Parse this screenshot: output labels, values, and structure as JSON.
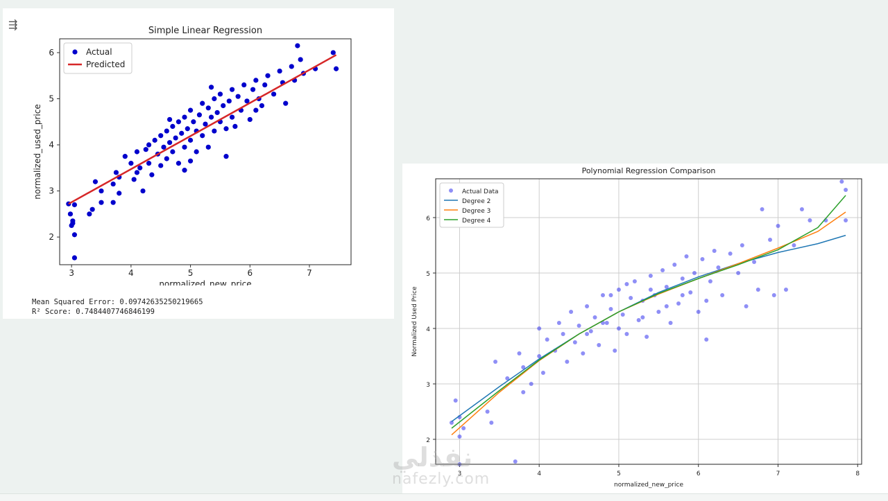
{
  "toolbar": {
    "menu_icon": "collapse-output-icon"
  },
  "metrics": {
    "mse": "Mean Squared Error: 0.09742635250219665",
    "r2": "R² Score: 0.7484407746846199"
  },
  "watermark": {
    "arabic": "نفذلي",
    "latin": "nafezly.com"
  },
  "chart_data": [
    {
      "type": "scatter",
      "title": "Simple Linear Regression",
      "xlabel": "normalized_new_price",
      "ylabel": "normalized_used_price",
      "xlim": [
        2.8,
        7.7
      ],
      "ylim": [
        1.4,
        6.3
      ],
      "xticks": [
        3,
        4,
        5,
        6,
        7
      ],
      "yticks": [
        2,
        3,
        4,
        5,
        6
      ],
      "grid": false,
      "legend_position": "top-left",
      "colors": {
        "actual": "#0000cc",
        "predicted": "#d62728"
      },
      "series": [
        {
          "name": "Actual",
          "kind": "scatter",
          "color": "#0000cc",
          "points": [
            [
              2.95,
              2.72
            ],
            [
              2.98,
              2.5
            ],
            [
              3.0,
              2.25
            ],
            [
              3.02,
              2.3
            ],
            [
              3.05,
              2.05
            ],
            [
              3.05,
              1.55
            ],
            [
              3.02,
              2.35
            ],
            [
              3.05,
              2.7
            ],
            [
              3.3,
              2.5
            ],
            [
              3.35,
              2.6
            ],
            [
              3.4,
              3.2
            ],
            [
              3.5,
              3.0
            ],
            [
              3.5,
              2.75
            ],
            [
              3.7,
              3.15
            ],
            [
              3.75,
              3.4
            ],
            [
              3.8,
              2.95
            ],
            [
              3.8,
              3.3
            ],
            [
              3.9,
              3.75
            ],
            [
              4.0,
              3.6
            ],
            [
              4.05,
              3.25
            ],
            [
              4.1,
              3.85
            ],
            [
              4.15,
              3.5
            ],
            [
              4.2,
              3.0
            ],
            [
              4.25,
              3.9
            ],
            [
              4.3,
              4.0
            ],
            [
              4.3,
              3.6
            ],
            [
              4.35,
              3.35
            ],
            [
              4.4,
              4.1
            ],
            [
              4.45,
              3.8
            ],
            [
              4.5,
              3.55
            ],
            [
              4.5,
              4.2
            ],
            [
              4.55,
              3.95
            ],
            [
              4.6,
              4.3
            ],
            [
              4.6,
              3.7
            ],
            [
              4.65,
              4.05
            ],
            [
              4.7,
              3.85
            ],
            [
              4.7,
              4.4
            ],
            [
              4.75,
              4.15
            ],
            [
              4.8,
              3.6
            ],
            [
              4.8,
              4.5
            ],
            [
              4.85,
              4.25
            ],
            [
              4.9,
              3.95
            ],
            [
              4.9,
              4.6
            ],
            [
              4.95,
              4.35
            ],
            [
              5.0,
              4.1
            ],
            [
              5.0,
              4.75
            ],
            [
              5.05,
              4.5
            ],
            [
              5.1,
              3.85
            ],
            [
              5.1,
              4.3
            ],
            [
              5.15,
              4.65
            ],
            [
              5.2,
              4.9
            ],
            [
              5.2,
              4.2
            ],
            [
              5.25,
              4.45
            ],
            [
              5.3,
              4.8
            ],
            [
              5.3,
              3.95
            ],
            [
              5.35,
              4.6
            ],
            [
              5.4,
              5.0
            ],
            [
              5.4,
              4.3
            ],
            [
              5.45,
              4.7
            ],
            [
              5.5,
              4.5
            ],
            [
              5.5,
              5.1
            ],
            [
              5.55,
              4.85
            ],
            [
              5.6,
              4.35
            ],
            [
              5.65,
              4.95
            ],
            [
              5.7,
              5.2
            ],
            [
              5.7,
              4.6
            ],
            [
              5.75,
              4.4
            ],
            [
              5.8,
              5.05
            ],
            [
              5.85,
              4.75
            ],
            [
              5.9,
              5.3
            ],
            [
              5.95,
              4.95
            ],
            [
              6.0,
              4.55
            ],
            [
              6.05,
              5.2
            ],
            [
              6.1,
              5.4
            ],
            [
              6.15,
              5.0
            ],
            [
              6.2,
              4.85
            ],
            [
              6.25,
              5.3
            ],
            [
              6.3,
              5.5
            ],
            [
              6.4,
              5.1
            ],
            [
              6.5,
              5.6
            ],
            [
              6.55,
              5.35
            ],
            [
              6.6,
              4.9
            ],
            [
              6.7,
              5.7
            ],
            [
              6.75,
              5.4
            ],
            [
              6.8,
              6.15
            ],
            [
              6.85,
              5.85
            ],
            [
              6.9,
              5.55
            ],
            [
              7.1,
              5.65
            ],
            [
              7.4,
              6.0
            ],
            [
              7.45,
              5.65
            ],
            [
              5.6,
              3.75
            ],
            [
              4.9,
              3.45
            ],
            [
              4.1,
              3.4
            ],
            [
              3.7,
              2.75
            ],
            [
              4.65,
              4.55
            ],
            [
              5.35,
              5.25
            ],
            [
              6.1,
              4.75
            ],
            [
              5.0,
              3.65
            ]
          ]
        },
        {
          "name": "Predicted",
          "kind": "line",
          "color": "#d62728",
          "points": [
            [
              2.95,
              2.72
            ],
            [
              7.45,
              5.95
            ]
          ]
        }
      ]
    },
    {
      "type": "scatter",
      "title": "Polynomial Regression Comparison",
      "xlabel": "normalized_new_price",
      "ylabel": "Normalized Used Price",
      "xlim": [
        2.7,
        8.05
      ],
      "ylim": [
        1.55,
        6.7
      ],
      "xticks": [
        3,
        4,
        5,
        6,
        7,
        8
      ],
      "yticks": [
        2,
        3,
        4,
        5,
        6
      ],
      "grid": true,
      "legend_position": "top-left",
      "series": [
        {
          "name": "Actual Data",
          "kind": "scatter",
          "color": "#3333ee",
          "points": [
            [
              2.9,
              2.3
            ],
            [
              2.95,
              2.7
            ],
            [
              3.0,
              2.4
            ],
            [
              3.05,
              2.2
            ],
            [
              3.0,
              2.05
            ],
            [
              3.0,
              1.55
            ],
            [
              3.35,
              2.5
            ],
            [
              3.4,
              2.3
            ],
            [
              3.45,
              3.4
            ],
            [
              3.6,
              3.1
            ],
            [
              3.7,
              1.6
            ],
            [
              3.75,
              3.55
            ],
            [
              3.8,
              2.85
            ],
            [
              3.8,
              3.3
            ],
            [
              3.9,
              3.0
            ],
            [
              4.0,
              4.0
            ],
            [
              4.0,
              3.5
            ],
            [
              4.05,
              3.2
            ],
            [
              4.1,
              3.8
            ],
            [
              4.2,
              3.6
            ],
            [
              4.25,
              4.1
            ],
            [
              4.3,
              3.9
            ],
            [
              4.35,
              3.4
            ],
            [
              4.4,
              4.3
            ],
            [
              4.45,
              3.75
            ],
            [
              4.5,
              4.05
            ],
            [
              4.55,
              3.55
            ],
            [
              4.6,
              4.4
            ],
            [
              4.65,
              3.95
            ],
            [
              4.7,
              4.2
            ],
            [
              4.75,
              3.7
            ],
            [
              4.8,
              4.6
            ],
            [
              4.85,
              4.1
            ],
            [
              4.9,
              4.35
            ],
            [
              4.95,
              3.6
            ],
            [
              5.0,
              4.7
            ],
            [
              5.05,
              4.25
            ],
            [
              5.1,
              3.9
            ],
            [
              5.15,
              4.55
            ],
            [
              5.2,
              4.85
            ],
            [
              5.25,
              4.15
            ],
            [
              5.3,
              4.5
            ],
            [
              5.35,
              3.85
            ],
            [
              5.4,
              4.95
            ],
            [
              5.45,
              4.6
            ],
            [
              5.5,
              4.3
            ],
            [
              5.55,
              5.05
            ],
            [
              5.6,
              4.75
            ],
            [
              5.65,
              4.1
            ],
            [
              5.7,
              5.15
            ],
            [
              5.75,
              4.45
            ],
            [
              5.8,
              4.9
            ],
            [
              5.85,
              5.3
            ],
            [
              5.9,
              4.65
            ],
            [
              5.95,
              5.0
            ],
            [
              6.0,
              4.3
            ],
            [
              6.05,
              5.25
            ],
            [
              6.1,
              3.8
            ],
            [
              6.15,
              4.85
            ],
            [
              6.2,
              5.4
            ],
            [
              6.25,
              5.1
            ],
            [
              6.3,
              4.6
            ],
            [
              6.4,
              5.35
            ],
            [
              6.5,
              5.0
            ],
            [
              6.55,
              5.5
            ],
            [
              6.6,
              4.4
            ],
            [
              6.7,
              5.2
            ],
            [
              6.75,
              4.7
            ],
            [
              6.8,
              6.15
            ],
            [
              6.9,
              5.6
            ],
            [
              6.95,
              4.6
            ],
            [
              7.0,
              5.85
            ],
            [
              7.1,
              4.7
            ],
            [
              7.2,
              5.5
            ],
            [
              7.3,
              6.15
            ],
            [
              7.4,
              5.95
            ],
            [
              7.6,
              5.95
            ],
            [
              7.8,
              6.65
            ],
            [
              7.85,
              6.5
            ],
            [
              7.85,
              5.95
            ],
            [
              4.9,
              4.6
            ],
            [
              5.1,
              4.8
            ],
            [
              5.3,
              4.2
            ],
            [
              5.6,
              4.4
            ],
            [
              5.0,
              4.0
            ],
            [
              4.6,
              3.9
            ],
            [
              5.8,
              4.6
            ],
            [
              6.1,
              4.5
            ],
            [
              5.4,
              4.7
            ],
            [
              4.8,
              4.1
            ]
          ]
        },
        {
          "name": "Degree 2",
          "kind": "line",
          "color": "#1f77b4",
          "points": [
            [
              2.9,
              2.32
            ],
            [
              3.5,
              2.95
            ],
            [
              4.0,
              3.45
            ],
            [
              4.5,
              3.9
            ],
            [
              5.0,
              4.3
            ],
            [
              5.5,
              4.65
            ],
            [
              6.0,
              4.93
            ],
            [
              6.5,
              5.17
            ],
            [
              7.0,
              5.37
            ],
            [
              7.5,
              5.53
            ],
            [
              7.85,
              5.68
            ]
          ]
        },
        {
          "name": "Degree 3",
          "kind": "line",
          "color": "#ff7f0e",
          "points": [
            [
              2.9,
              2.08
            ],
            [
              3.5,
              2.85
            ],
            [
              4.0,
              3.42
            ],
            [
              4.5,
              3.9
            ],
            [
              5.0,
              4.3
            ],
            [
              5.5,
              4.62
            ],
            [
              6.0,
              4.9
            ],
            [
              6.5,
              5.17
            ],
            [
              7.0,
              5.45
            ],
            [
              7.5,
              5.75
            ],
            [
              7.85,
              6.1
            ]
          ]
        },
        {
          "name": "Degree 4",
          "kind": "line",
          "color": "#2ca02c",
          "points": [
            [
              2.9,
              2.2
            ],
            [
              3.5,
              2.88
            ],
            [
              4.0,
              3.43
            ],
            [
              4.5,
              3.9
            ],
            [
              5.0,
              4.3
            ],
            [
              5.5,
              4.63
            ],
            [
              6.0,
              4.9
            ],
            [
              6.5,
              5.15
            ],
            [
              7.0,
              5.42
            ],
            [
              7.5,
              5.82
            ],
            [
              7.85,
              6.4
            ]
          ]
        }
      ]
    }
  ]
}
